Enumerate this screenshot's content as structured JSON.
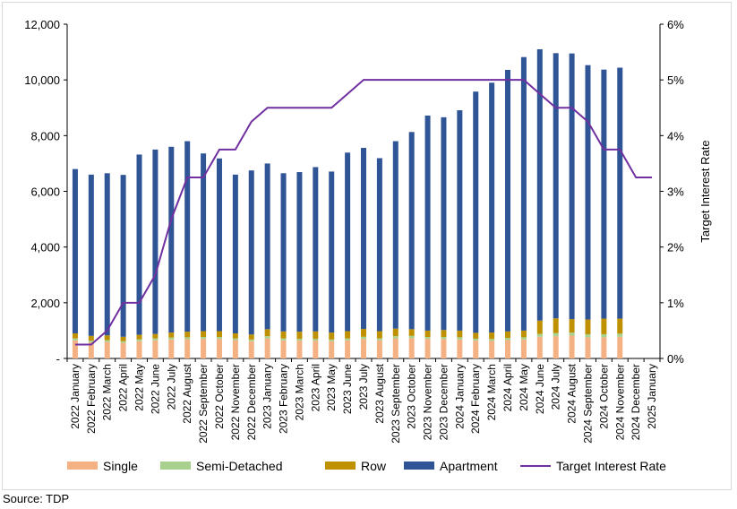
{
  "chart_data": {
    "type": "bar",
    "stacked": true,
    "secondary_type": "line",
    "categories": [
      "2022 January",
      "2022 February",
      "2022 March",
      "2022 April",
      "2022 May",
      "2022 June",
      "2022 July",
      "2022 August",
      "2022 September",
      "2022 October",
      "2022 November",
      "2022 December",
      "2023 January",
      "2023 February",
      "2023 March",
      "2023 April",
      "2023 May",
      "2023 June",
      "2023 July",
      "2023 August",
      "2023 September",
      "2023 October",
      "2023 November",
      "2023 December",
      "2024 January",
      "2024 February",
      "2024 March",
      "2024 April",
      "2024 May",
      "2024 June",
      "2024 July",
      "2024 August",
      "2024 September",
      "2024 October",
      "2024 November",
      "2024 December",
      "2025 January"
    ],
    "series": [
      {
        "name": "Single",
        "color": "#f4b183",
        "values": [
          650,
          580,
          600,
          560,
          620,
          650,
          680,
          690,
          700,
          700,
          660,
          620,
          720,
          650,
          640,
          640,
          620,
          650,
          700,
          650,
          720,
          730,
          700,
          700,
          680,
          640,
          630,
          660,
          680,
          780,
          800,
          820,
          760,
          760,
          780,
          null,
          null
        ]
      },
      {
        "name": "Semi-Detached",
        "color": "#a9d18e",
        "values": [
          70,
          60,
          60,
          60,
          70,
          70,
          70,
          70,
          70,
          70,
          60,
          60,
          80,
          70,
          60,
          60,
          60,
          70,
          80,
          70,
          80,
          80,
          70,
          70,
          80,
          70,
          70,
          80,
          80,
          100,
          110,
          110,
          110,
          110,
          110,
          null,
          null
        ]
      },
      {
        "name": "Row",
        "color": "#bf9000",
        "values": [
          180,
          170,
          170,
          160,
          160,
          160,
          180,
          200,
          210,
          210,
          180,
          180,
          250,
          250,
          260,
          270,
          250,
          260,
          280,
          260,
          270,
          240,
          230,
          250,
          240,
          210,
          230,
          230,
          240,
          480,
          530,
          480,
          530,
          560,
          540,
          null,
          null
        ]
      },
      {
        "name": "Apartment",
        "color": "#2f5597",
        "values": [
          5900,
          5790,
          5820,
          5810,
          6470,
          6620,
          6670,
          6840,
          6380,
          6200,
          5700,
          5890,
          5950,
          5680,
          5730,
          5900,
          5780,
          6410,
          6500,
          6210,
          6730,
          7080,
          7720,
          7640,
          7910,
          8660,
          8970,
          9390,
          9820,
          9740,
          9520,
          9540,
          9130,
          8940,
          9010,
          null,
          null
        ]
      }
    ],
    "line_series": {
      "name": "Target Interest Rate",
      "color": "#7030a0",
      "values": [
        0.25,
        0.25,
        0.5,
        1.0,
        1.0,
        1.5,
        2.5,
        3.25,
        3.25,
        3.75,
        3.75,
        4.25,
        4.5,
        4.5,
        4.5,
        4.5,
        4.5,
        4.75,
        5.0,
        5.0,
        5.0,
        5.0,
        5.0,
        5.0,
        5.0,
        5.0,
        5.0,
        5.0,
        5.0,
        4.75,
        4.5,
        4.5,
        4.25,
        3.75,
        3.75,
        3.25,
        3.25
      ]
    },
    "y_left": {
      "ticks": [
        "-",
        "2,000",
        "4,000",
        "6,000",
        "8,000",
        "10,000",
        "12,000"
      ],
      "min": 0,
      "max": 12000
    },
    "y_right": {
      "ticks": [
        "0%",
        "1%",
        "2%",
        "3%",
        "4%",
        "5%",
        "6%"
      ],
      "min": 0,
      "max": 6,
      "label": "Target Interest Rate"
    },
    "legend": {
      "position": "bottom"
    },
    "grid": false
  },
  "source": "Source: TDP"
}
